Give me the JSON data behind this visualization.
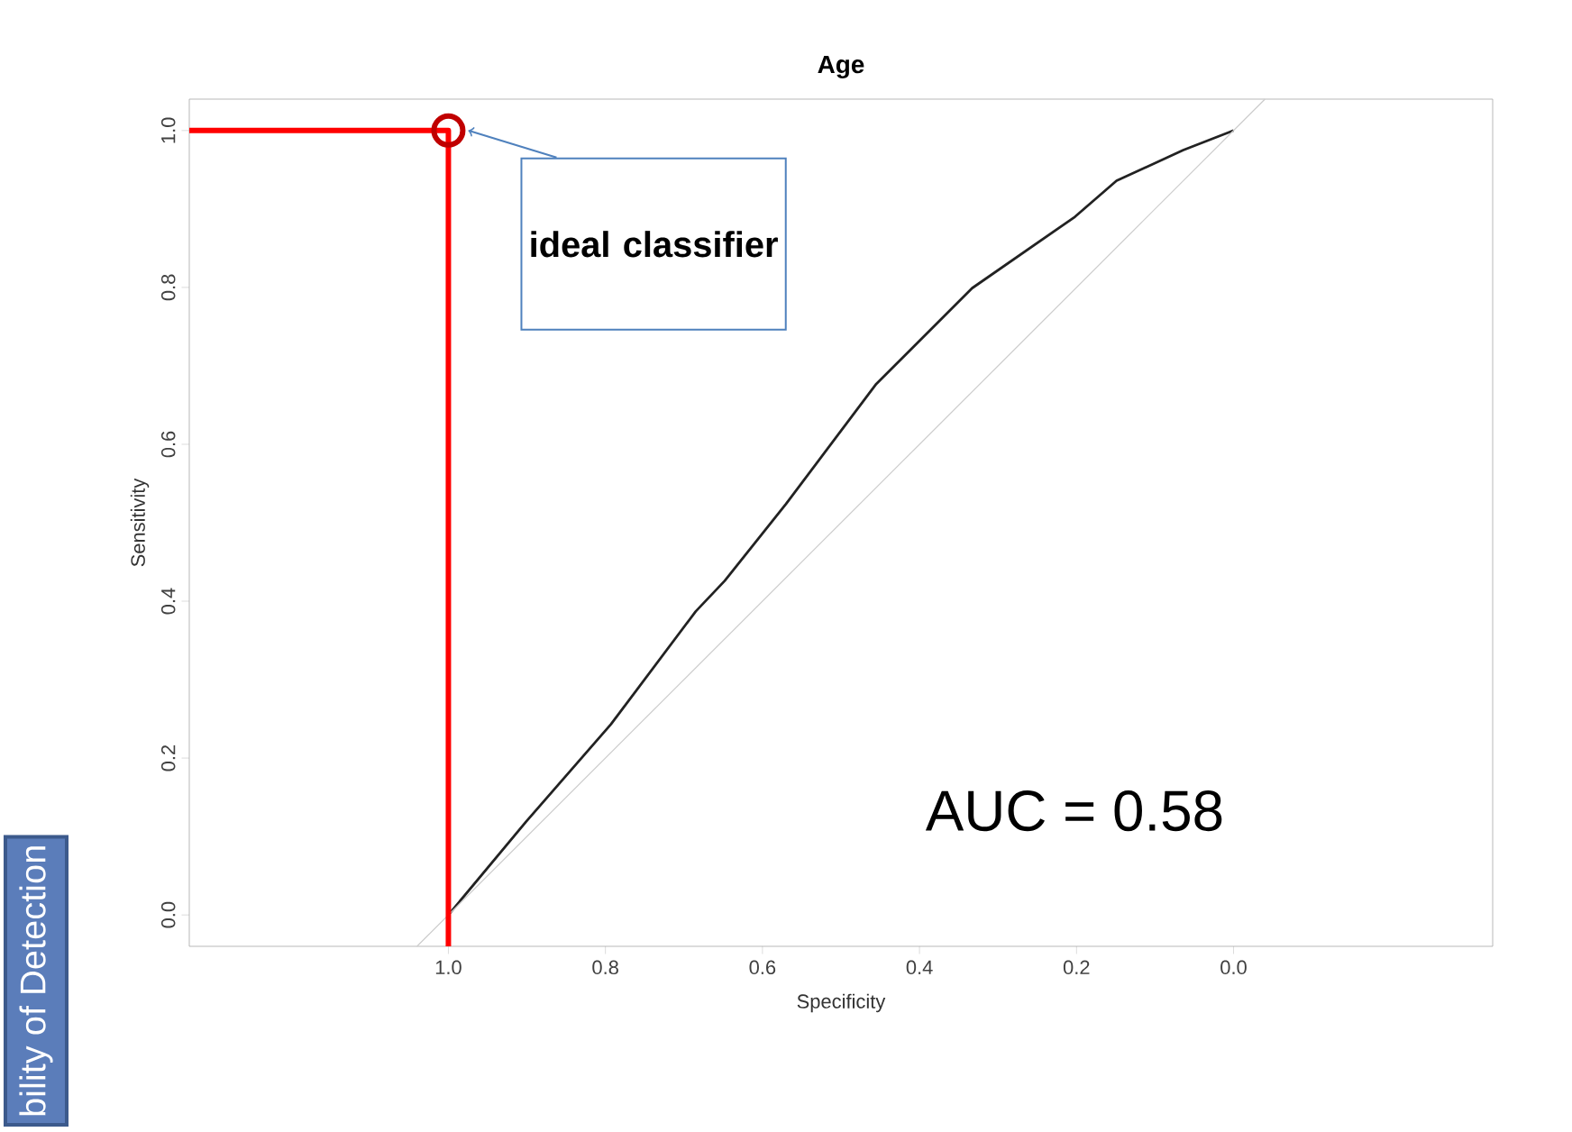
{
  "chart_data": {
    "type": "line",
    "title": "Age",
    "xlabel": "Specificity",
    "ylabel": "Sensitivity",
    "xlim": [
      1.33,
      -0.33
    ],
    "ylim": [
      -0.04,
      1.04
    ],
    "xticks": [
      {
        "value": 1,
        "label": "1.0"
      },
      {
        "value": 0.8,
        "label": "0.8"
      },
      {
        "value": 0.6,
        "label": "0.6"
      },
      {
        "value": 0.4,
        "label": "0.4"
      },
      {
        "value": 0.2,
        "label": "0.2"
      },
      {
        "value": 0,
        "label": "0.0"
      }
    ],
    "yticks": [
      {
        "value": 0,
        "label": "0.0"
      },
      {
        "value": 0.2,
        "label": "0.2"
      },
      {
        "value": 0.4,
        "label": "0.4"
      },
      {
        "value": 0.6,
        "label": "0.6"
      },
      {
        "value": 0.8,
        "label": "0.8"
      },
      {
        "value": 1,
        "label": "1.0"
      }
    ],
    "series": [
      {
        "color": "#222222",
        "x": [
          1.0,
          0.901,
          0.793,
          0.685,
          0.648,
          0.57,
          0.455,
          0.333,
          0.202,
          0.149,
          0.064,
          0.005,
          0.0
        ],
        "values": [
          0.0,
          0.119,
          0.243,
          0.387,
          0.426,
          0.524,
          0.677,
          0.799,
          0.89,
          0.936,
          0.975,
          0.998,
          1.0
        ]
      },
      {
        "color": "#cccccc",
        "x": [
          1.04,
          -0.04
        ],
        "values": [
          -0.04,
          1.04
        ]
      },
      {
        "color": "#ff0000",
        "x": [
          1.33,
          1.0,
          1.0
        ],
        "values": [
          1.0,
          1.0,
          -0.04
        ]
      },
      {
        "type": "scatter",
        "marker": "circle",
        "color": "#c00000",
        "x": [
          1.0
        ],
        "values": [
          1.0
        ]
      }
    ],
    "annotations": [
      "ideal classifier",
      "AUC = 0.58",
      "bility of Detection"
    ],
    "grid": false
  }
}
